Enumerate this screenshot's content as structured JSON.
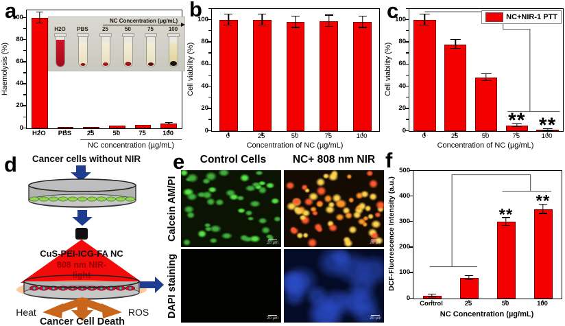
{
  "figure": {
    "colors": {
      "bar_red": "#f40000",
      "error_bar": "#000000",
      "nir_arrow_blue": "#1e3d8f",
      "effect_arrow_orange": "#c8661c",
      "laser_cone_red": "#f20000",
      "calcein_green": "#55e645",
      "pi_orange": "#ff9326",
      "dapi_blue": "#2d50d2"
    },
    "panels": {
      "a": {
        "letter": "a",
        "inset": {
          "header": "NC Concentration (µg/mL)",
          "tubes": [
            {
              "label": "H2O",
              "liquid": "red",
              "pellet": "none"
            },
            {
              "label": "PBS",
              "liquid": "cream",
              "pellet": "small-red"
            },
            {
              "label": "25",
              "liquid": "cream",
              "pellet": "red"
            },
            {
              "label": "50",
              "liquid": "cream",
              "pellet": "red-large"
            },
            {
              "label": "75",
              "liquid": "cream",
              "pellet": "dark"
            },
            {
              "label": "100",
              "liquid": "yellow",
              "pellet": "black"
            }
          ]
        }
      },
      "b": {
        "letter": "b"
      },
      "c": {
        "letter": "c",
        "legend": "NC+NIR-1 PTT"
      },
      "d": {
        "letter": "d",
        "title": "Cancer cells without NIR",
        "nc_label": "CuS-PEI-ICG-FA NC",
        "nir_line1": "808 nm NIR-",
        "nir_line2": "light",
        "heat": "Heat",
        "ros": "ROS",
        "death": "Cancer Cell Death"
      },
      "e": {
        "letter": "e",
        "col_headers": [
          "Control Cells",
          "NC+ 808  nm NIR"
        ],
        "row_labels": [
          "Calcein AM/PI",
          "DAPI staining"
        ],
        "scale_bar": "20 µm",
        "images": [
          {
            "name": "calcein-control",
            "base": "#0b1403",
            "count": 46,
            "rmin": 5,
            "rmax": 9,
            "squash": true,
            "colors": [
              {
                "core": "#55e645",
                "edge": "rgba(40,150,30,0)"
              },
              {
                "core": "#3fae3a",
                "edge": "rgba(30,110,25,0)"
              }
            ]
          },
          {
            "name": "calcein-nir",
            "base": "#140b03",
            "count": 68,
            "rmin": 4,
            "rmax": 8,
            "squash": false,
            "colors": [
              {
                "core": "#ffd24d",
                "edge": "rgba(255,110,0,0)"
              },
              {
                "core": "#ff9326",
                "edge": "rgba(220,60,0,0)"
              },
              {
                "core": "#ff5a2e",
                "edge": "rgba(180,30,0,0)"
              }
            ]
          },
          {
            "name": "dapi-control",
            "base": "#020301",
            "count": 0,
            "rmin": 0,
            "rmax": 0,
            "squash": false,
            "colors": []
          },
          {
            "name": "dapi-nir",
            "base": "#040b26",
            "count": 16,
            "rmin": 16,
            "rmax": 30,
            "squash": false,
            "colors": [
              {
                "core": "rgba(45,80,210,0.55)",
                "edge": "rgba(20,40,140,0)"
              }
            ]
          }
        ]
      },
      "f": {
        "letter": "f"
      }
    }
  },
  "chart_data": [
    {
      "id": "a",
      "type": "bar",
      "title": "",
      "categories": [
        "H2O",
        "PBS",
        "25",
        "50",
        "75",
        "100"
      ],
      "values": [
        100,
        0.4,
        1.5,
        2.3,
        3.2,
        4.2
      ],
      "errors": [
        5,
        0,
        0,
        0,
        0,
        0.5
      ],
      "significance": [
        null,
        null,
        null,
        null,
        null,
        null
      ],
      "xlabel": "NC concentration (µg/mL)",
      "ylabel": "Haemolysis (%)",
      "ylim": [
        0,
        107
      ],
      "yticks": [
        0,
        20,
        40,
        60,
        80,
        100
      ],
      "yminor": 10,
      "bar_frac": 0.62,
      "bar_color": "#f40000",
      "grid": false,
      "legend": null
    },
    {
      "id": "b",
      "type": "bar",
      "title": "",
      "categories": [
        "0",
        "25",
        "50",
        "75",
        "100"
      ],
      "values": [
        100,
        100,
        98,
        99,
        98
      ],
      "errors": [
        5,
        5,
        5,
        5,
        5
      ],
      "significance": [
        null,
        null,
        null,
        null,
        null
      ],
      "xlabel": "Concentration of NC (µg/mL)",
      "ylabel": "Cell viability (%)",
      "ylim": [
        0,
        110
      ],
      "yticks": [
        0,
        20,
        40,
        60,
        80,
        100
      ],
      "yminor": 10,
      "bar_frac": 0.55,
      "bar_color": "#f40000",
      "grid": false,
      "legend": null
    },
    {
      "id": "c",
      "type": "bar",
      "title": "",
      "categories": [
        "0",
        "25",
        "50",
        "75",
        "100"
      ],
      "values": [
        100,
        78,
        48,
        5,
        1
      ],
      "errors": [
        5,
        4,
        3,
        1.5,
        0.8
      ],
      "significance": [
        null,
        null,
        null,
        "**",
        "**"
      ],
      "xlabel": "Concentration of NC (µg/mL)",
      "ylabel": "Cell viability (%)",
      "ylim": [
        0,
        110
      ],
      "yticks": [
        0,
        20,
        40,
        60,
        80,
        100
      ],
      "yminor": 10,
      "bar_frac": 0.72,
      "bar_color": "#f40000",
      "grid": false,
      "legend": "NC+NIR-1 PTT",
      "legend_position": "top-right"
    },
    {
      "id": "f",
      "type": "bar",
      "title": "",
      "categories": [
        "Control",
        "25",
        "50",
        "100"
      ],
      "values": [
        10,
        80,
        300,
        350
      ],
      "errors": [
        5,
        8,
        15,
        18
      ],
      "significance": [
        null,
        null,
        "**",
        "**"
      ],
      "xlabel": "NC Concentration (µg/mL)",
      "ylabel": "DCF-Fluorescence Intensity (a.u.)",
      "ylim": [
        0,
        500
      ],
      "yticks": [
        0,
        100,
        200,
        300,
        400,
        500
      ],
      "yminor": null,
      "bar_frac": 0.5,
      "bar_color": "#f40000",
      "grid": false,
      "legend": null
    }
  ]
}
